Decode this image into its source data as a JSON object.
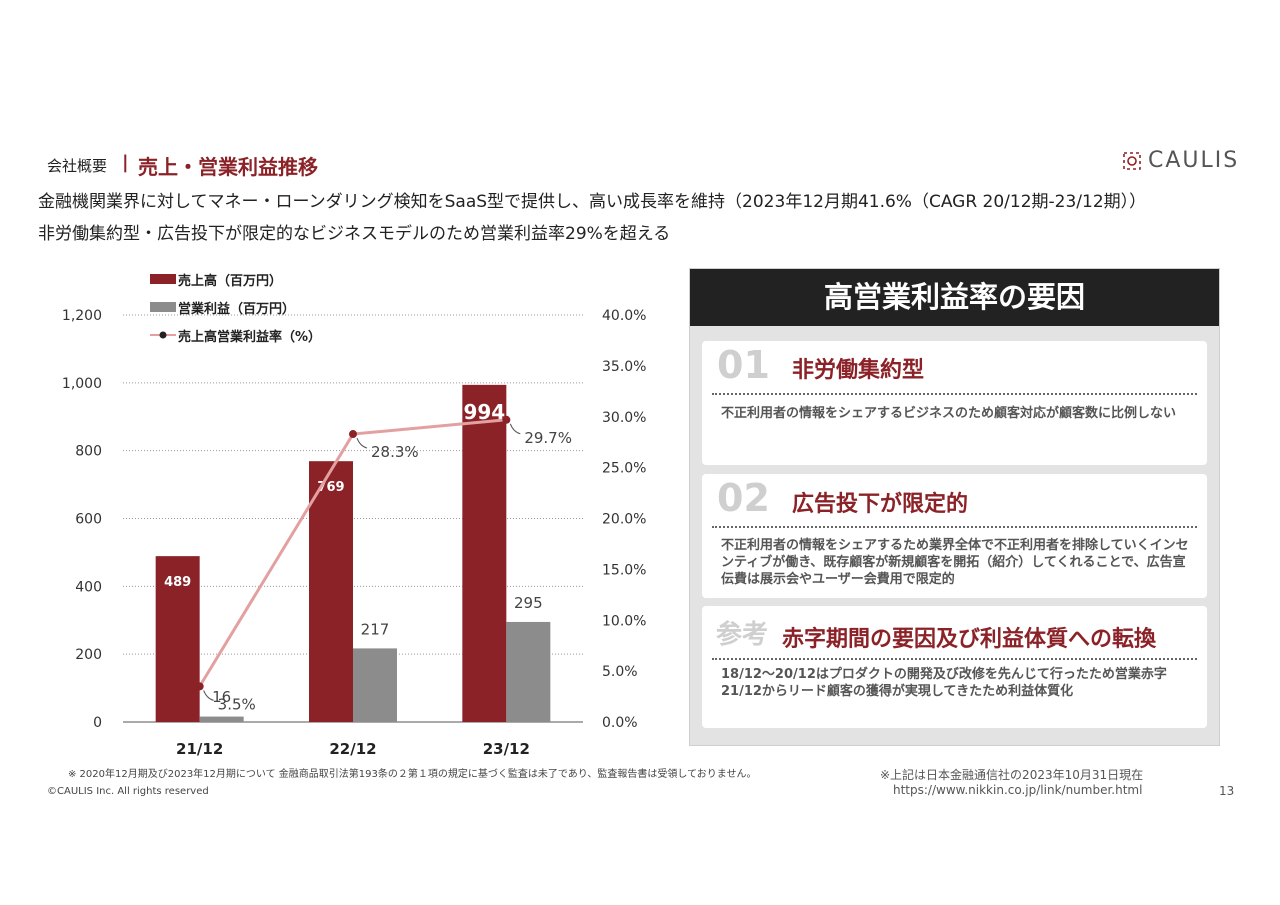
{
  "header": {
    "section": "会社概要",
    "separator": "|",
    "title": "売上・営業利益推移",
    "logo_text": "CAULIS"
  },
  "lead": {
    "line1": "金融機関業界に対してマネー・ローンダリング検知をSaaS型で提供し、高い成長率を維持（2023年12月期41.6%（CAGR 20/12期-23/12期））",
    "line2": "非労働集約型・広告投下が限定的なビジネスモデルのため営業利益率29%を超える"
  },
  "chart_data": {
    "type": "bar",
    "categories": [
      "21/12",
      "22/12",
      "23/12"
    ],
    "series": [
      {
        "name": "売上高（百万円）",
        "kind": "bar",
        "axis": "left",
        "color": "#8b2227",
        "values": [
          489,
          769,
          994
        ],
        "labels": [
          "489",
          "769",
          "994"
        ]
      },
      {
        "name": "営業利益（百万円）",
        "kind": "bar",
        "axis": "left",
        "color": "#8c8c8c",
        "values": [
          16,
          217,
          295
        ],
        "labels": [
          "16",
          "217",
          "295"
        ]
      },
      {
        "name": "売上高営業利益率（%）",
        "kind": "line",
        "axis": "right",
        "color": "#e3a0a0",
        "values": [
          3.5,
          28.3,
          29.7
        ],
        "labels": [
          "3.5%",
          "28.3%",
          "29.7%"
        ]
      }
    ],
    "left_axis": {
      "range": [
        0,
        1200
      ],
      "ticks": [
        "0",
        "200",
        "400",
        "600",
        "800",
        "1,000",
        "1,200"
      ]
    },
    "right_axis": {
      "range": [
        0,
        40
      ],
      "ticks": [
        "0.0%",
        "5.0%",
        "10.0%",
        "15.0%",
        "20.0%",
        "25.0%",
        "30.0%",
        "35.0%",
        "40.0%"
      ]
    },
    "legend": [
      "売上高（百万円）",
      "営業利益（百万円）",
      "売上高営業利益率（%）"
    ],
    "legend_position": "top-left",
    "grid": true
  },
  "panel": {
    "title": "高営業利益率の要因",
    "cards": [
      {
        "num": "01",
        "title": "非労働集約型",
        "body": "不正利用者の情報をシェアするビジネスのため顧客対応が顧客数に比例しない"
      },
      {
        "num": "02",
        "title": "広告投下が限定的",
        "body": "不正利用者の情報をシェアするため業界全体で不正利用者を排除していくインセンティブが働き、既存顧客が新規顧客を開拓（紹介）してくれることで、広告宣伝費は展示会やユーザー会費用で限定的"
      },
      {
        "num": "参考",
        "title": "赤字期間の要因及び利益体質への転換",
        "body": "18/12〜20/12はプロダクトの開発及び改修を先んじて行ったため営業赤字\n21/12からリード顧客の獲得が実現してきたため利益体質化"
      }
    ]
  },
  "footer": {
    "note": "※ 2020年12月期及び2023年12月期について 金融商品取引法第193条の２第１項の規定に基づく監査は未了であり、監査報告書は受領しておりません。",
    "copyright": "©CAULIS Inc. All rights reserved",
    "source_line1": "※上記は日本金融通信社の2023年10月31日現在",
    "source_line2": "https://www.nikkin.co.jp/link/number.html",
    "page_number": "13"
  },
  "colors": {
    "brand_red": "#8b2227",
    "gray_bar": "#8c8c8c",
    "line_pink": "#e3a0a0",
    "panel_dark": "#222222"
  }
}
